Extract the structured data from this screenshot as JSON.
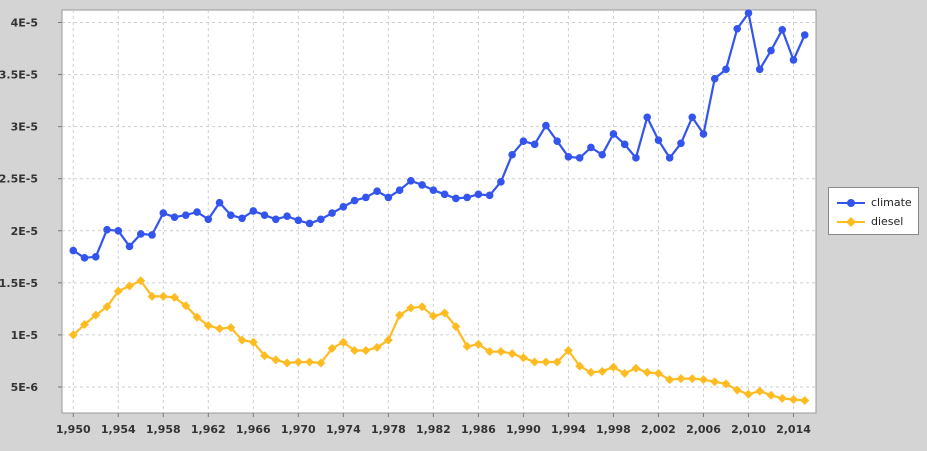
{
  "chart_data": {
    "type": "line",
    "title": "",
    "xlabel": "",
    "ylabel": "",
    "x": [
      1950,
      1951,
      1952,
      1953,
      1954,
      1955,
      1956,
      1957,
      1958,
      1959,
      1960,
      1961,
      1962,
      1963,
      1964,
      1965,
      1966,
      1967,
      1968,
      1969,
      1970,
      1971,
      1972,
      1973,
      1974,
      1975,
      1976,
      1977,
      1978,
      1979,
      1980,
      1981,
      1982,
      1983,
      1984,
      1985,
      1986,
      1987,
      1988,
      1989,
      1990,
      1991,
      1992,
      1993,
      1994,
      1995,
      1996,
      1997,
      1998,
      1999,
      2000,
      2001,
      2002,
      2003,
      2004,
      2005,
      2006,
      2007,
      2008,
      2009,
      2010,
      2011,
      2012,
      2013,
      2014,
      2015
    ],
    "xlim": [
      1949,
      2016
    ],
    "ylim": [
      2.5e-06,
      4.12e-05
    ],
    "x_ticks": [
      1950,
      1954,
      1958,
      1962,
      1966,
      1970,
      1974,
      1978,
      1982,
      1986,
      1990,
      1994,
      1998,
      2002,
      2006,
      2010,
      2014
    ],
    "x_tick_labels": [
      "1,950",
      "1,954",
      "1,958",
      "1,962",
      "1,966",
      "1,970",
      "1,974",
      "1,978",
      "1,982",
      "1,986",
      "1,990",
      "1,994",
      "1,998",
      "2,002",
      "2,006",
      "2,010",
      "2,014"
    ],
    "y_ticks": [
      5e-06,
      1e-05,
      1.5e-05,
      2e-05,
      2.5e-05,
      3e-05,
      3.5e-05,
      4e-05
    ],
    "y_tick_labels": [
      "5E-6",
      "1E-5",
      "1.5E-5",
      "2E-5",
      "2.5E-5",
      "3E-5",
      "3.5E-5",
      "4E-5"
    ],
    "grid": true,
    "legend_position": "right",
    "series": [
      {
        "name": "climate",
        "color": "#3355ee",
        "marker": "circle",
        "values": [
          1.81e-05,
          1.74e-05,
          1.75e-05,
          2.01e-05,
          2e-05,
          1.85e-05,
          1.97e-05,
          1.96e-05,
          2.17e-05,
          2.13e-05,
          2.15e-05,
          2.18e-05,
          2.11e-05,
          2.27e-05,
          2.15e-05,
          2.12e-05,
          2.19e-05,
          2.15e-05,
          2.11e-05,
          2.14e-05,
          2.1e-05,
          2.07e-05,
          2.11e-05,
          2.17e-05,
          2.23e-05,
          2.29e-05,
          2.32e-05,
          2.38e-05,
          2.32e-05,
          2.39e-05,
          2.48e-05,
          2.44e-05,
          2.39e-05,
          2.35e-05,
          2.31e-05,
          2.32e-05,
          2.35e-05,
          2.34e-05,
          2.47e-05,
          2.73e-05,
          2.86e-05,
          2.83e-05,
          3.01e-05,
          2.86e-05,
          2.71e-05,
          2.7e-05,
          2.8e-05,
          2.73e-05,
          2.93e-05,
          2.83e-05,
          2.7e-05,
          3.09e-05,
          2.87e-05,
          2.7e-05,
          2.84e-05,
          3.09e-05,
          2.93e-05,
          3.46e-05,
          3.55e-05,
          3.94e-05,
          4.09e-05,
          3.55e-05,
          3.73e-05,
          3.93e-05,
          3.64e-05,
          3.88e-05
        ]
      },
      {
        "name": "diesel",
        "color": "#ffbb22",
        "marker": "diamond",
        "values": [
          1e-05,
          1.1e-05,
          1.19e-05,
          1.27e-05,
          1.42e-05,
          1.47e-05,
          1.52e-05,
          1.37e-05,
          1.37e-05,
          1.36e-05,
          1.28e-05,
          1.17e-05,
          1.09e-05,
          1.06e-05,
          1.07e-05,
          9.5e-06,
          9.3e-06,
          8e-06,
          7.6e-06,
          7.3e-06,
          7.4e-06,
          7.4e-06,
          7.3e-06,
          8.7e-06,
          9.3e-06,
          8.5e-06,
          8.5e-06,
          8.8e-06,
          9.5e-06,
          1.19e-05,
          1.26e-05,
          1.27e-05,
          1.18e-05,
          1.21e-05,
          1.08e-05,
          8.9e-06,
          9.1e-06,
          8.4e-06,
          8.4e-06,
          8.2e-06,
          7.8e-06,
          7.4e-06,
          7.4e-06,
          7.4e-06,
          8.5e-06,
          7e-06,
          6.4e-06,
          6.5e-06,
          6.9e-06,
          6.3e-06,
          6.8e-06,
          6.4e-06,
          6.3e-06,
          5.7e-06,
          5.8e-06,
          5.8e-06,
          5.7e-06,
          5.5e-06,
          5.3e-06,
          4.7e-06,
          4.3e-06,
          4.6e-06,
          4.2e-06,
          3.9e-06,
          3.8e-06,
          3.7e-06
        ]
      }
    ]
  }
}
